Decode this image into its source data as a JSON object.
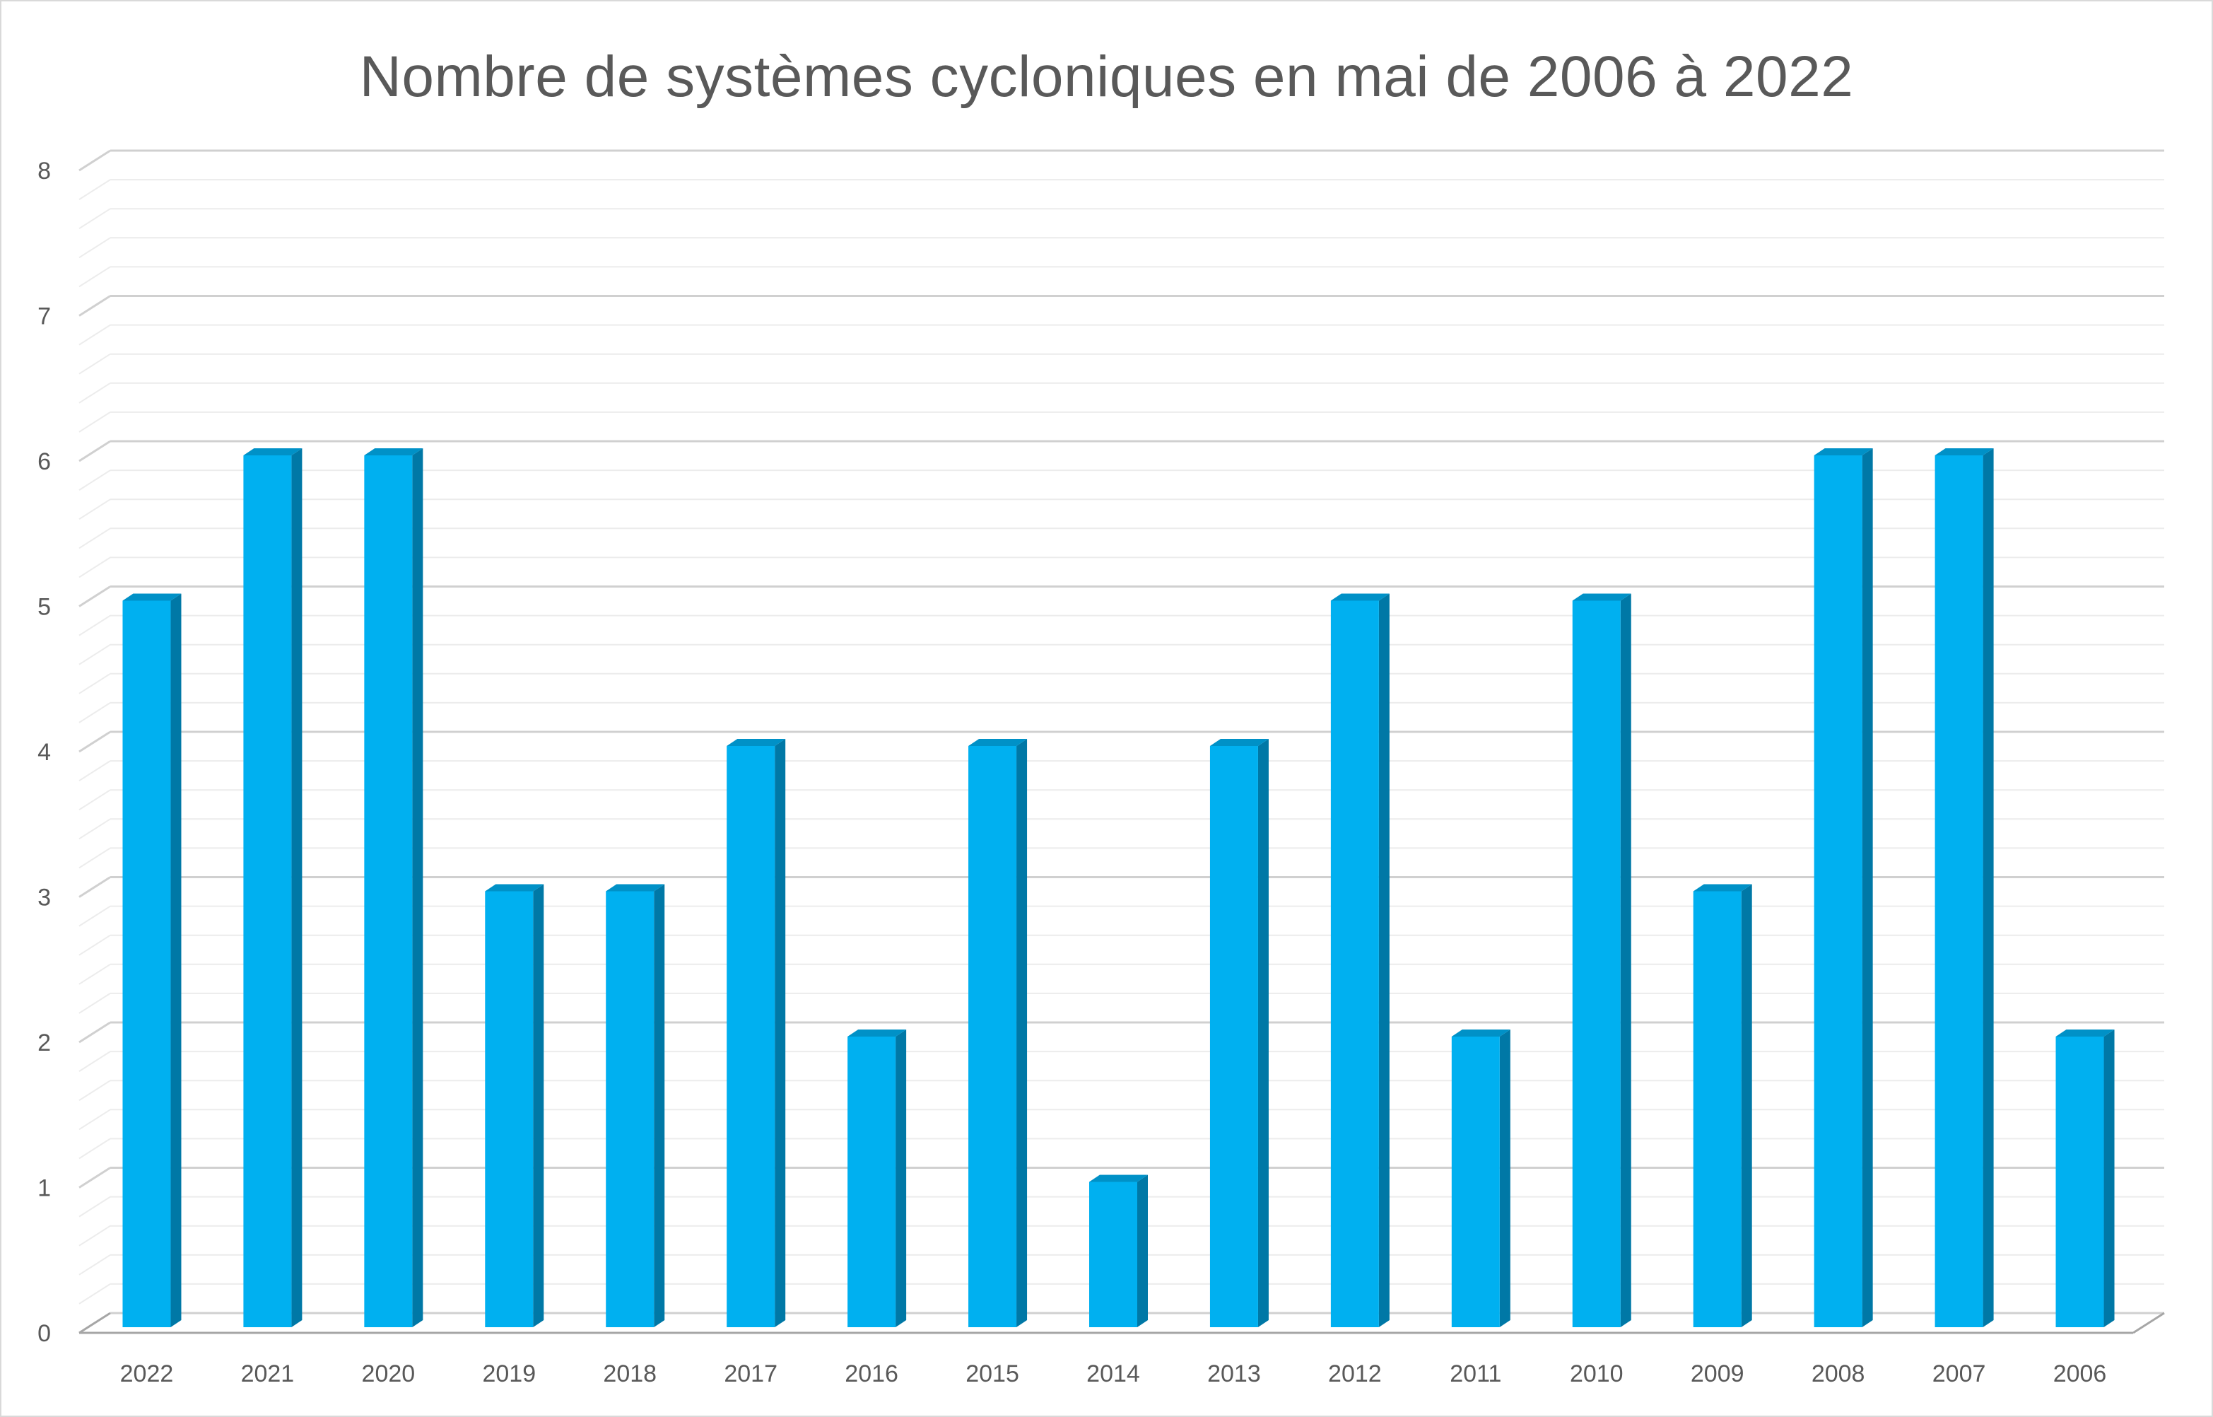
{
  "chart_data": {
    "type": "bar",
    "title": "Nombre de systèmes cycloniques en mai de 2006 à 2022",
    "xlabel": "",
    "ylabel": "",
    "categories": [
      "2022",
      "2021",
      "2020",
      "2019",
      "2018",
      "2017",
      "2016",
      "2015",
      "2014",
      "2013",
      "2012",
      "2011",
      "2010",
      "2009",
      "2008",
      "2007",
      "2006"
    ],
    "values": [
      5,
      6,
      6,
      3,
      3,
      4,
      2,
      4,
      1,
      4,
      5,
      2,
      5,
      3,
      6,
      6,
      2
    ],
    "ylim": [
      0,
      8
    ],
    "yticks": [
      "0",
      "1",
      "2",
      "3",
      "4",
      "5",
      "6",
      "7",
      "8"
    ],
    "grid": true,
    "legend": "none",
    "style_3d": true,
    "colors": {
      "bar_front": "#00b0f0",
      "bar_side": "#0078a6",
      "bar_top": "#0091c7",
      "major_grid": "#d0d0d0",
      "minor_grid": "#ececec",
      "floor": "#a6a6a6",
      "text": "#595959"
    }
  }
}
